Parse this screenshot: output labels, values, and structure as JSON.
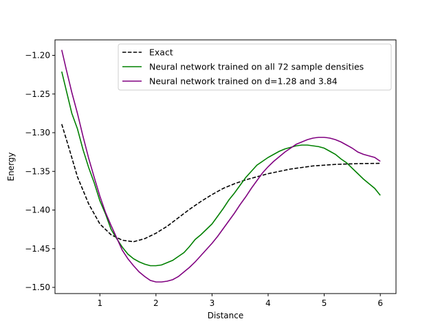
{
  "chart_data": {
    "type": "line",
    "xlabel": "Distance",
    "ylabel": "Energy",
    "xlim": [
      0.2,
      6.28
    ],
    "ylim": [
      -1.508,
      -1.18
    ],
    "xticks": [
      1,
      2,
      3,
      4,
      5,
      6
    ],
    "yticks": [
      -1.5,
      -1.45,
      -1.4,
      -1.35,
      -1.3,
      -1.25,
      -1.2
    ],
    "legend_position": "top-right",
    "grid": false,
    "series": [
      {
        "name": "Exact",
        "color": "#000000",
        "style": "dashed",
        "points": [
          [
            0.32,
            -1.289
          ],
          [
            0.45,
            -1.32
          ],
          [
            0.6,
            -1.357
          ],
          [
            0.8,
            -1.392
          ],
          [
            1.0,
            -1.418
          ],
          [
            1.2,
            -1.432
          ],
          [
            1.4,
            -1.439
          ],
          [
            1.6,
            -1.441
          ],
          [
            1.8,
            -1.437
          ],
          [
            2.0,
            -1.43
          ],
          [
            2.2,
            -1.421
          ],
          [
            2.4,
            -1.41
          ],
          [
            2.6,
            -1.399
          ],
          [
            2.8,
            -1.389
          ],
          [
            3.0,
            -1.38
          ],
          [
            3.2,
            -1.372
          ],
          [
            3.4,
            -1.366
          ],
          [
            3.6,
            -1.361
          ],
          [
            3.8,
            -1.357
          ],
          [
            4.0,
            -1.353
          ],
          [
            4.2,
            -1.35
          ],
          [
            4.4,
            -1.347
          ],
          [
            4.6,
            -1.345
          ],
          [
            4.8,
            -1.343
          ],
          [
            5.0,
            -1.342
          ],
          [
            5.2,
            -1.341
          ],
          [
            5.4,
            -1.3405
          ],
          [
            5.6,
            -1.34
          ],
          [
            5.8,
            -1.3398
          ],
          [
            6.0,
            -1.3396
          ]
        ]
      },
      {
        "name": "Neural network trained on all 72 sample densities",
        "color": "#008000",
        "style": "solid",
        "points": [
          [
            0.32,
            -1.221
          ],
          [
            0.4,
            -1.245
          ],
          [
            0.5,
            -1.275
          ],
          [
            0.6,
            -1.295
          ],
          [
            0.7,
            -1.322
          ],
          [
            0.8,
            -1.345
          ],
          [
            0.9,
            -1.365
          ],
          [
            1.0,
            -1.388
          ],
          [
            1.1,
            -1.405
          ],
          [
            1.2,
            -1.425
          ],
          [
            1.3,
            -1.437
          ],
          [
            1.4,
            -1.448
          ],
          [
            1.5,
            -1.457
          ],
          [
            1.6,
            -1.463
          ],
          [
            1.7,
            -1.467
          ],
          [
            1.8,
            -1.47
          ],
          [
            1.9,
            -1.472
          ],
          [
            2.0,
            -1.472
          ],
          [
            2.1,
            -1.471
          ],
          [
            2.2,
            -1.468
          ],
          [
            2.3,
            -1.465
          ],
          [
            2.4,
            -1.46
          ],
          [
            2.5,
            -1.455
          ],
          [
            2.6,
            -1.447
          ],
          [
            2.7,
            -1.438
          ],
          [
            2.8,
            -1.432
          ],
          [
            2.9,
            -1.425
          ],
          [
            3.0,
            -1.418
          ],
          [
            3.1,
            -1.408
          ],
          [
            3.2,
            -1.398
          ],
          [
            3.3,
            -1.387
          ],
          [
            3.4,
            -1.378
          ],
          [
            3.5,
            -1.368
          ],
          [
            3.6,
            -1.358
          ],
          [
            3.7,
            -1.35
          ],
          [
            3.8,
            -1.342
          ],
          [
            3.9,
            -1.337
          ],
          [
            4.0,
            -1.332
          ],
          [
            4.1,
            -1.328
          ],
          [
            4.2,
            -1.324
          ],
          [
            4.3,
            -1.321
          ],
          [
            4.4,
            -1.319
          ],
          [
            4.5,
            -1.317
          ],
          [
            4.6,
            -1.316
          ],
          [
            4.7,
            -1.316
          ],
          [
            4.8,
            -1.317
          ],
          [
            4.9,
            -1.318
          ],
          [
            5.0,
            -1.32
          ],
          [
            5.1,
            -1.324
          ],
          [
            5.2,
            -1.328
          ],
          [
            5.3,
            -1.334
          ],
          [
            5.4,
            -1.339
          ],
          [
            5.5,
            -1.346
          ],
          [
            5.6,
            -1.353
          ],
          [
            5.7,
            -1.36
          ],
          [
            5.8,
            -1.366
          ],
          [
            5.9,
            -1.372
          ],
          [
            6.0,
            -1.381
          ]
        ]
      },
      {
        "name": "Neural network trained on d=1.28 and 3.84",
        "color": "#800080",
        "style": "solid",
        "points": [
          [
            0.32,
            -1.193
          ],
          [
            0.4,
            -1.218
          ],
          [
            0.5,
            -1.248
          ],
          [
            0.6,
            -1.275
          ],
          [
            0.7,
            -1.305
          ],
          [
            0.8,
            -1.333
          ],
          [
            0.9,
            -1.358
          ],
          [
            1.0,
            -1.382
          ],
          [
            1.1,
            -1.403
          ],
          [
            1.2,
            -1.42
          ],
          [
            1.3,
            -1.436
          ],
          [
            1.4,
            -1.452
          ],
          [
            1.5,
            -1.463
          ],
          [
            1.6,
            -1.472
          ],
          [
            1.7,
            -1.48
          ],
          [
            1.8,
            -1.486
          ],
          [
            1.9,
            -1.491
          ],
          [
            2.0,
            -1.493
          ],
          [
            2.1,
            -1.493
          ],
          [
            2.2,
            -1.492
          ],
          [
            2.3,
            -1.49
          ],
          [
            2.4,
            -1.486
          ],
          [
            2.5,
            -1.48
          ],
          [
            2.6,
            -1.474
          ],
          [
            2.7,
            -1.467
          ],
          [
            2.8,
            -1.459
          ],
          [
            2.9,
            -1.451
          ],
          [
            3.0,
            -1.443
          ],
          [
            3.1,
            -1.434
          ],
          [
            3.2,
            -1.424
          ],
          [
            3.3,
            -1.414
          ],
          [
            3.4,
            -1.404
          ],
          [
            3.5,
            -1.393
          ],
          [
            3.6,
            -1.383
          ],
          [
            3.7,
            -1.372
          ],
          [
            3.8,
            -1.362
          ],
          [
            3.9,
            -1.352
          ],
          [
            4.0,
            -1.344
          ],
          [
            4.1,
            -1.337
          ],
          [
            4.2,
            -1.331
          ],
          [
            4.3,
            -1.325
          ],
          [
            4.4,
            -1.32
          ],
          [
            4.5,
            -1.315
          ],
          [
            4.6,
            -1.312
          ],
          [
            4.7,
            -1.309
          ],
          [
            4.8,
            -1.307
          ],
          [
            4.9,
            -1.306
          ],
          [
            5.0,
            -1.306
          ],
          [
            5.1,
            -1.307
          ],
          [
            5.2,
            -1.309
          ],
          [
            5.3,
            -1.312
          ],
          [
            5.4,
            -1.316
          ],
          [
            5.5,
            -1.32
          ],
          [
            5.6,
            -1.325
          ],
          [
            5.7,
            -1.328
          ],
          [
            5.8,
            -1.33
          ],
          [
            5.9,
            -1.332
          ],
          [
            6.0,
            -1.337
          ]
        ]
      }
    ]
  }
}
